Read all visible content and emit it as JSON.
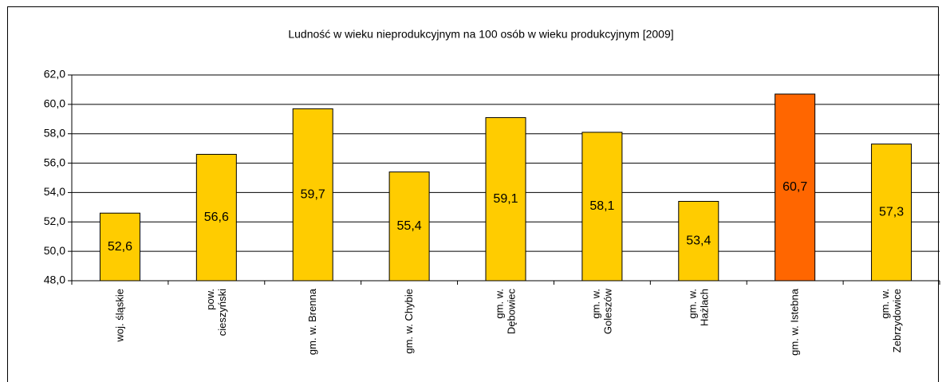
{
  "chart_data": {
    "type": "bar",
    "title": "Ludność w wieku nieprodukcyjnym na 100 osób w wieku produkcyjnym [2009]",
    "categories": [
      "woj. śląskie",
      "pow.\ncieszyński",
      "gm. w. Brenna",
      "gm. w. Chybie",
      "gm. w.\nDębowiec",
      "gm. w.\nGoleszów",
      "gm. w.\nHażlach",
      "gm. w. Istebna",
      "gm. w.\nZebrzydowice"
    ],
    "values": [
      52.6,
      56.6,
      59.7,
      55.4,
      59.1,
      58.1,
      53.4,
      60.7,
      57.3
    ],
    "value_labels": [
      "52,6",
      "56,6",
      "59,7",
      "55,4",
      "59,1",
      "58,1",
      "53,4",
      "60,7",
      "57,3"
    ],
    "colors": [
      "#ffcc00",
      "#ffcc00",
      "#ffcc00",
      "#ffcc00",
      "#ffcc00",
      "#ffcc00",
      "#ffcc00",
      "#ff6600",
      "#ffcc00"
    ],
    "ylim": [
      48,
      62
    ],
    "yticks": [
      {
        "value": 48,
        "label": "48,0"
      },
      {
        "value": 50,
        "label": "50,0"
      },
      {
        "value": 52,
        "label": "52,0"
      },
      {
        "value": 54,
        "label": "54,0"
      },
      {
        "value": 56,
        "label": "56,0"
      },
      {
        "value": 58,
        "label": "58,0"
      },
      {
        "value": 60,
        "label": "60,0"
      },
      {
        "value": 62,
        "label": "62,0"
      }
    ],
    "grid": true
  }
}
